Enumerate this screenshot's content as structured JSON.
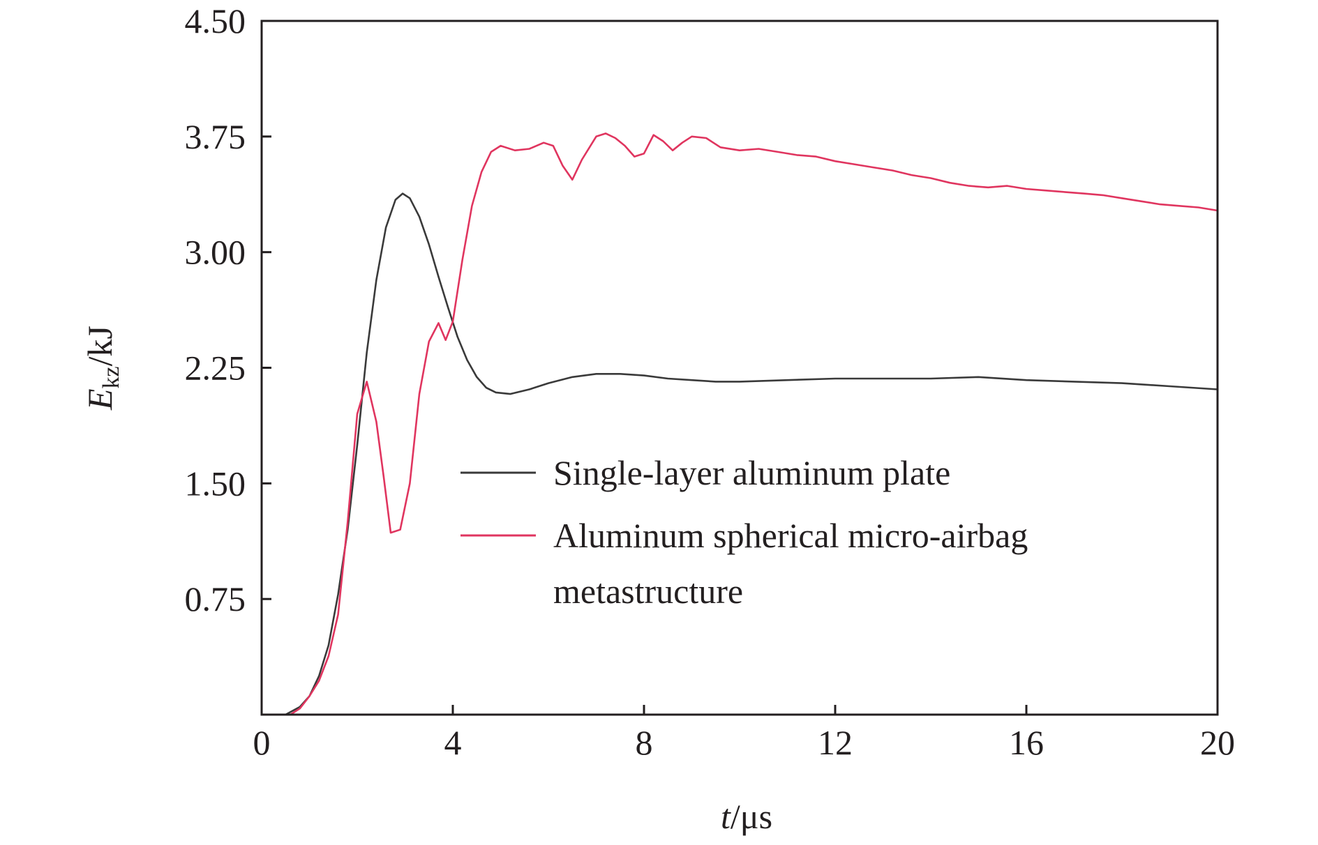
{
  "chart_data": {
    "type": "line",
    "xlim": [
      0,
      20
    ],
    "ylim": [
      0,
      4.5
    ],
    "x_ticks": [
      "0",
      "4",
      "8",
      "12",
      "16",
      "20"
    ],
    "y_ticks": [
      "0.75",
      "1.50",
      "2.25",
      "3.00",
      "3.75",
      "4.50"
    ],
    "xlabel": {
      "italic": "t",
      "rest": "/μs"
    },
    "ylabel": {
      "italic": "E",
      "sub": "kz",
      "rest": "/kJ"
    },
    "legend_position": "center-right",
    "series": [
      {
        "name": "Single-layer aluminum plate",
        "color": "#3a3a3a",
        "points": [
          [
            0,
            0
          ],
          [
            0.5,
            0.0
          ],
          [
            0.8,
            0.05
          ],
          [
            1.0,
            0.12
          ],
          [
            1.2,
            0.25
          ],
          [
            1.4,
            0.45
          ],
          [
            1.6,
            0.78
          ],
          [
            1.8,
            1.2
          ],
          [
            2.0,
            1.75
          ],
          [
            2.2,
            2.35
          ],
          [
            2.4,
            2.82
          ],
          [
            2.6,
            3.16
          ],
          [
            2.8,
            3.34
          ],
          [
            2.95,
            3.38
          ],
          [
            3.1,
            3.35
          ],
          [
            3.3,
            3.23
          ],
          [
            3.5,
            3.05
          ],
          [
            3.7,
            2.84
          ],
          [
            3.9,
            2.64
          ],
          [
            4.1,
            2.45
          ],
          [
            4.3,
            2.3
          ],
          [
            4.5,
            2.19
          ],
          [
            4.7,
            2.12
          ],
          [
            4.9,
            2.09
          ],
          [
            5.2,
            2.08
          ],
          [
            5.6,
            2.11
          ],
          [
            6.0,
            2.15
          ],
          [
            6.5,
            2.19
          ],
          [
            7.0,
            2.21
          ],
          [
            7.5,
            2.21
          ],
          [
            8.0,
            2.2
          ],
          [
            8.5,
            2.18
          ],
          [
            9.0,
            2.17
          ],
          [
            9.5,
            2.16
          ],
          [
            10.0,
            2.16
          ],
          [
            11.0,
            2.17
          ],
          [
            12.0,
            2.18
          ],
          [
            13.0,
            2.18
          ],
          [
            14.0,
            2.18
          ],
          [
            15.0,
            2.19
          ],
          [
            16.0,
            2.17
          ],
          [
            17.0,
            2.16
          ],
          [
            18.0,
            2.15
          ],
          [
            19.0,
            2.13
          ],
          [
            20.0,
            2.11
          ]
        ]
      },
      {
        "name": "Aluminum spherical micro-airbag",
        "name_line2": "metastructure",
        "color": "#e0355f",
        "points": [
          [
            0,
            0
          ],
          [
            0.6,
            0.0
          ],
          [
            0.8,
            0.04
          ],
          [
            1.0,
            0.12
          ],
          [
            1.2,
            0.22
          ],
          [
            1.4,
            0.38
          ],
          [
            1.6,
            0.65
          ],
          [
            1.8,
            1.25
          ],
          [
            2.0,
            1.95
          ],
          [
            2.2,
            2.16
          ],
          [
            2.4,
            1.9
          ],
          [
            2.55,
            1.55
          ],
          [
            2.7,
            1.18
          ],
          [
            2.9,
            1.2
          ],
          [
            3.1,
            1.5
          ],
          [
            3.3,
            2.08
          ],
          [
            3.5,
            2.42
          ],
          [
            3.7,
            2.54
          ],
          [
            3.85,
            2.43
          ],
          [
            4.0,
            2.55
          ],
          [
            4.2,
            2.95
          ],
          [
            4.4,
            3.3
          ],
          [
            4.6,
            3.52
          ],
          [
            4.8,
            3.65
          ],
          [
            5.0,
            3.69
          ],
          [
            5.3,
            3.66
          ],
          [
            5.6,
            3.67
          ],
          [
            5.9,
            3.71
          ],
          [
            6.1,
            3.69
          ],
          [
            6.3,
            3.56
          ],
          [
            6.5,
            3.47
          ],
          [
            6.7,
            3.6
          ],
          [
            7.0,
            3.75
          ],
          [
            7.2,
            3.77
          ],
          [
            7.4,
            3.74
          ],
          [
            7.6,
            3.69
          ],
          [
            7.8,
            3.62
          ],
          [
            8.0,
            3.64
          ],
          [
            8.2,
            3.76
          ],
          [
            8.4,
            3.72
          ],
          [
            8.6,
            3.66
          ],
          [
            8.8,
            3.71
          ],
          [
            9.0,
            3.75
          ],
          [
            9.3,
            3.74
          ],
          [
            9.6,
            3.68
          ],
          [
            10.0,
            3.66
          ],
          [
            10.4,
            3.67
          ],
          [
            10.8,
            3.65
          ],
          [
            11.2,
            3.63
          ],
          [
            11.6,
            3.62
          ],
          [
            12.0,
            3.59
          ],
          [
            12.4,
            3.57
          ],
          [
            12.8,
            3.55
          ],
          [
            13.2,
            3.53
          ],
          [
            13.6,
            3.5
          ],
          [
            14.0,
            3.48
          ],
          [
            14.4,
            3.45
          ],
          [
            14.8,
            3.43
          ],
          [
            15.2,
            3.42
          ],
          [
            15.6,
            3.43
          ],
          [
            16.0,
            3.41
          ],
          [
            16.4,
            3.4
          ],
          [
            16.8,
            3.39
          ],
          [
            17.2,
            3.38
          ],
          [
            17.6,
            3.37
          ],
          [
            18.0,
            3.35
          ],
          [
            18.4,
            3.33
          ],
          [
            18.8,
            3.31
          ],
          [
            19.2,
            3.3
          ],
          [
            19.6,
            3.29
          ],
          [
            20.0,
            3.27
          ]
        ]
      }
    ]
  }
}
